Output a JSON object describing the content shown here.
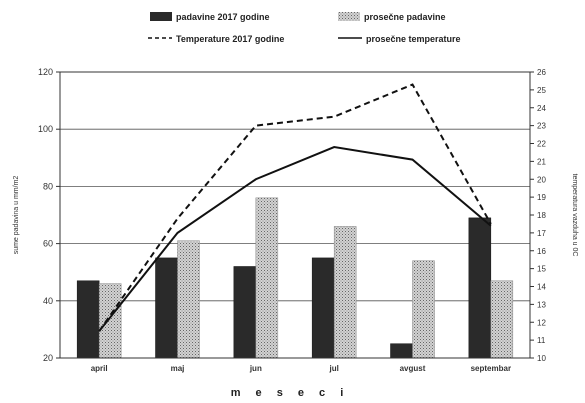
{
  "chart_data": {
    "type": "bar",
    "categories": [
      "april",
      "maj",
      "jun",
      "jul",
      "avgust",
      "septembar"
    ],
    "xlabel": "m e s e c i",
    "ylabel_left": "sume padavina u mm/m2",
    "ylabel_right": "temperatura vazduha u 0C",
    "ylim_left": [
      20,
      120
    ],
    "ylim_right": [
      10,
      26
    ],
    "left_ticks": [
      20,
      40,
      60,
      80,
      100,
      120
    ],
    "right_ticks": [
      10,
      11,
      12,
      13,
      14,
      15,
      16,
      17,
      18,
      19,
      20,
      21,
      22,
      23,
      24,
      25,
      26
    ],
    "bar_series": [
      {
        "name": "padavine 2017 godine",
        "values": [
          47,
          55,
          52,
          55,
          25,
          69
        ],
        "color": "#2a2a2a"
      },
      {
        "name": "prosečne padavine",
        "values": [
          46,
          61,
          76,
          66,
          54,
          47
        ],
        "color": "#b8b8b8"
      }
    ],
    "line_series": [
      {
        "name": "Temperature 2017 godine",
        "values": [
          11.5,
          17.8,
          23,
          23.5,
          25.3,
          17.5
        ],
        "dash": "dashed",
        "axis": "right"
      },
      {
        "name": "prosečne temperature",
        "values": [
          11.5,
          17,
          20,
          21.8,
          21.1,
          17.4
        ],
        "dash": "solid",
        "axis": "right"
      }
    ],
    "grid": true,
    "legend_position": "top"
  }
}
